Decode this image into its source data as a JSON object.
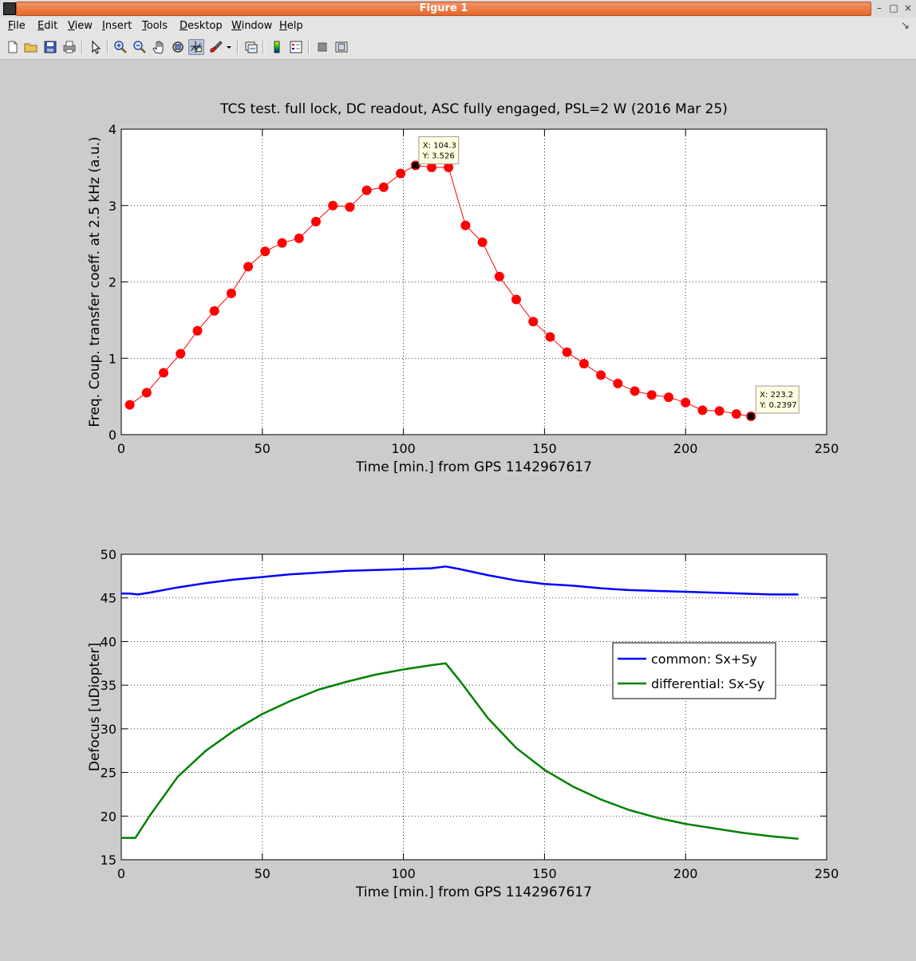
{
  "window": {
    "title": "Figure 1",
    "minimize_label": "–",
    "maximize_label": "□",
    "close_label": "×"
  },
  "menu": [
    {
      "label": "File",
      "mnemonic": "F",
      "rest": "ile"
    },
    {
      "label": "Edit",
      "mnemonic": "E",
      "rest": "dit"
    },
    {
      "label": "View",
      "mnemonic": "V",
      "rest": "iew"
    },
    {
      "label": "Insert",
      "mnemonic": "I",
      "rest": "nsert"
    },
    {
      "label": "Tools",
      "mnemonic": "T",
      "rest": "ools"
    },
    {
      "label": "Desktop",
      "mnemonic": "D",
      "rest": "esktop"
    },
    {
      "label": "Window",
      "mnemonic": "W",
      "rest": "indow"
    },
    {
      "label": "Help",
      "mnemonic": "H",
      "rest": "elp"
    }
  ],
  "toolbar": {
    "icons": [
      "new-figure-icon",
      "open-icon",
      "save-icon",
      "print-icon",
      "pointer-icon",
      "zoom-in-icon",
      "zoom-out-icon",
      "pan-hand-icon",
      "rotate-3d-icon",
      "data-cursor-icon",
      "brush-icon",
      "dropdown-arrow-icon",
      "link-plot-icon",
      "colorbar-icon",
      "legend-icon",
      "hide-plot-tools-icon",
      "show-plot-tools-icon"
    ],
    "active": "data-cursor-icon"
  },
  "chart_data": [
    {
      "type": "line",
      "title": "TCS test. full lock, DC readout, ASC fully engaged, PSL=2 W (2016 Mar 25)",
      "xlabel": "Time [min.] from GPS 1142967617",
      "ylabel": "Freq. Coup. transfer coeff. at 2.5 kHz (a.u.)",
      "xlim": [
        0,
        250
      ],
      "ylim": [
        0,
        4
      ],
      "xticks": [
        "0",
        "50",
        "100",
        "150",
        "200",
        "250"
      ],
      "yticks": [
        "0",
        "1",
        "2",
        "3",
        "4"
      ],
      "grid": true,
      "series": [
        {
          "color": "#ff0000",
          "marker": "circle",
          "x": [
            3,
            9,
            15,
            21,
            27,
            33,
            39,
            45,
            51,
            57,
            63,
            69,
            75,
            81,
            87,
            93,
            99,
            104.3,
            110,
            116,
            122,
            128,
            134,
            140,
            146,
            152,
            158,
            164,
            170,
            176,
            182,
            188,
            194,
            200,
            206,
            212,
            218,
            223.2
          ],
          "y": [
            0.39,
            0.55,
            0.81,
            1.06,
            1.36,
            1.62,
            1.85,
            2.2,
            2.4,
            2.51,
            2.57,
            2.79,
            3.0,
            2.98,
            3.2,
            3.24,
            3.42,
            3.526,
            3.5,
            3.5,
            2.74,
            2.52,
            2.07,
            1.77,
            1.48,
            1.28,
            1.08,
            0.93,
            0.78,
            0.67,
            0.57,
            0.52,
            0.49,
            0.42,
            0.32,
            0.31,
            0.27,
            0.2397
          ]
        }
      ],
      "annotations": [
        {
          "x": 104.3,
          "y": 3.526,
          "label_x": "X: 104.3",
          "label_y": "Y: 3.526"
        },
        {
          "x": 223.2,
          "y": 0.2397,
          "label_x": "X: 223.2",
          "label_y": "Y: 0.2397"
        }
      ]
    },
    {
      "type": "line",
      "title": "",
      "xlabel": "Time [min.] from GPS 1142967617",
      "ylabel": "Defocus [uDiopter]",
      "xlim": [
        0,
        250
      ],
      "ylim": [
        15,
        50
      ],
      "xticks": [
        "0",
        "50",
        "100",
        "150",
        "200",
        "250"
      ],
      "yticks": [
        "15",
        "20",
        "25",
        "30",
        "35",
        "40",
        "45",
        "50"
      ],
      "grid": true,
      "legend_position": "right",
      "series": [
        {
          "name": "common: Sx+Sy",
          "color": "#0000ff",
          "x": [
            0,
            3,
            6,
            10,
            20,
            30,
            40,
            50,
            60,
            70,
            80,
            90,
            100,
            110,
            115,
            120,
            130,
            140,
            150,
            160,
            170,
            180,
            190,
            200,
            210,
            220,
            230,
            240
          ],
          "y": [
            45.5,
            45.5,
            45.4,
            45.6,
            46.2,
            46.7,
            47.1,
            47.4,
            47.7,
            47.9,
            48.1,
            48.2,
            48.3,
            48.4,
            48.6,
            48.3,
            47.6,
            47.0,
            46.6,
            46.4,
            46.1,
            45.9,
            45.8,
            45.7,
            45.6,
            45.5,
            45.4,
            45.4
          ]
        },
        {
          "name": "differential: Sx-Sy",
          "color": "#008000",
          "x": [
            0,
            3,
            5,
            10,
            20,
            30,
            40,
            50,
            60,
            70,
            80,
            90,
            100,
            110,
            115,
            120,
            130,
            140,
            150,
            160,
            170,
            180,
            190,
            200,
            210,
            220,
            230,
            240
          ],
          "y": [
            17.5,
            17.5,
            17.5,
            20.0,
            24.5,
            27.5,
            29.8,
            31.7,
            33.2,
            34.5,
            35.4,
            36.2,
            36.8,
            37.3,
            37.5,
            35.5,
            31.2,
            27.8,
            25.3,
            23.4,
            21.9,
            20.7,
            19.8,
            19.1,
            18.6,
            18.1,
            17.7,
            17.4
          ]
        }
      ]
    }
  ]
}
